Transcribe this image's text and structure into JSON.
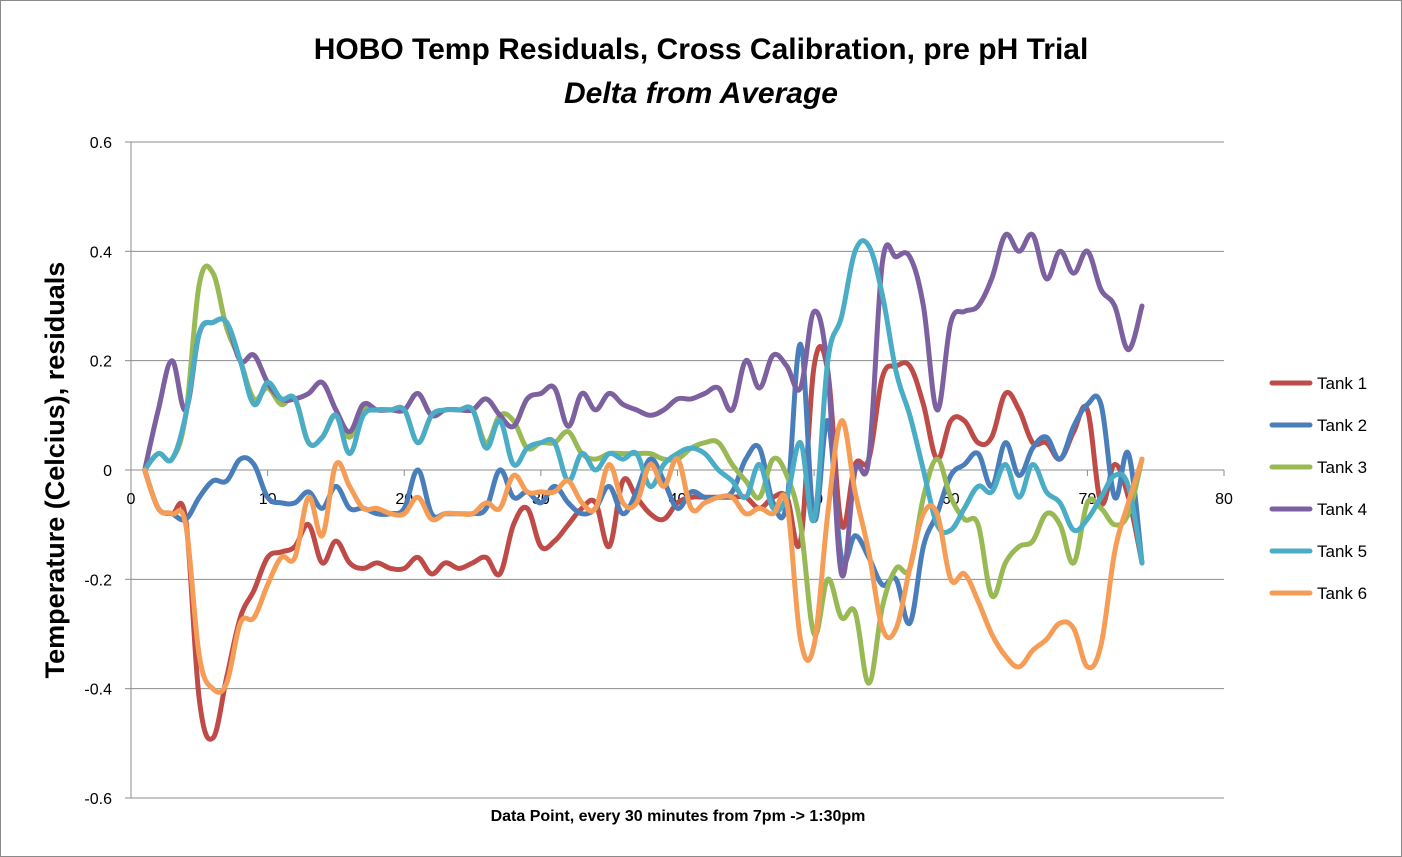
{
  "chart_data": {
    "type": "line",
    "title": "HOBO Temp Residuals, Cross Calibration, pre pH Trial",
    "subtitle": "Delta from Average",
    "xlabel": "Data Point, every 30 minutes from 7pm -> 1:30pm",
    "ylabel": "Temperature (Celcius), residuals",
    "xlim": [
      0,
      80
    ],
    "ylim": [
      -0.6,
      0.6
    ],
    "x_ticks": [
      0,
      10,
      20,
      30,
      40,
      50,
      60,
      70,
      80
    ],
    "y_ticks": [
      -0.6,
      -0.4,
      -0.2,
      0,
      0.2,
      0.4,
      0.6
    ],
    "y_tick_labels": [
      "-0.6",
      "-0.4",
      "-0.2",
      "0",
      "0.2",
      "0.4",
      "0.6"
    ],
    "x_tick_labels": [
      "0",
      "10",
      "20",
      "30",
      "40",
      "50",
      "60",
      "70",
      "80"
    ],
    "grid": "horizontal",
    "legend": "right",
    "x": [
      1,
      2,
      3,
      4,
      5,
      6,
      7,
      8,
      9,
      10,
      11,
      12,
      13,
      14,
      15,
      16,
      17,
      18,
      19,
      20,
      21,
      22,
      23,
      24,
      25,
      26,
      27,
      28,
      29,
      30,
      31,
      32,
      33,
      34,
      35,
      36,
      37,
      38,
      39,
      40,
      41,
      42,
      43,
      44,
      45,
      46,
      47,
      48,
      49,
      50,
      51,
      52,
      53,
      54,
      55,
      56,
      57,
      58,
      59,
      60,
      61,
      62,
      63,
      64,
      65,
      66,
      67,
      68,
      69,
      70,
      71,
      72,
      73,
      74
    ],
    "series": [
      {
        "name": "Tank 1",
        "color": "#BE4B48",
        "values": [
          0,
          -0.07,
          -0.08,
          -0.09,
          -0.42,
          -0.49,
          -0.38,
          -0.27,
          -0.22,
          -0.16,
          -0.15,
          -0.14,
          -0.1,
          -0.17,
          -0.13,
          -0.17,
          -0.18,
          -0.17,
          -0.18,
          -0.18,
          -0.16,
          -0.19,
          -0.17,
          -0.18,
          -0.17,
          -0.16,
          -0.19,
          -0.1,
          -0.07,
          -0.14,
          -0.13,
          -0.1,
          -0.07,
          -0.06,
          -0.14,
          -0.02,
          -0.05,
          -0.08,
          -0.09,
          -0.06,
          -0.05,
          -0.05,
          -0.05,
          -0.05,
          -0.05,
          -0.07,
          -0.05,
          -0.05,
          -0.13,
          0.19,
          0.18,
          -0.1,
          0.01,
          0.02,
          0.17,
          0.19,
          0.19,
          0.12,
          0.02,
          0.09,
          0.09,
          0.05,
          0.06,
          0.14,
          0.11,
          0.05,
          0.05,
          0.02,
          0.07,
          0.11,
          -0.06,
          0.01,
          -0.05,
          -0.17
        ]
      },
      {
        "name": "Tank 2",
        "color": "#4A7EBB",
        "values": [
          0,
          -0.07,
          -0.08,
          -0.09,
          -0.05,
          -0.02,
          -0.02,
          0.02,
          0.01,
          -0.05,
          -0.06,
          -0.06,
          -0.04,
          -0.07,
          -0.03,
          -0.07,
          -0.07,
          -0.08,
          -0.08,
          -0.07,
          0,
          -0.08,
          -0.08,
          -0.08,
          -0.08,
          -0.07,
          0,
          -0.05,
          -0.04,
          -0.06,
          -0.03,
          -0.06,
          -0.08,
          -0.07,
          -0.03,
          -0.08,
          -0.04,
          0.02,
          -0.02,
          -0.07,
          -0.04,
          -0.05,
          -0.05,
          -0.04,
          0.02,
          0.04,
          -0.06,
          -0.06,
          0.23,
          -0.09,
          0.09,
          -0.16,
          -0.12,
          -0.16,
          -0.21,
          -0.2,
          -0.28,
          -0.14,
          -0.08,
          -0.01,
          0.01,
          0.03,
          -0.03,
          0.05,
          -0.01,
          0.04,
          0.06,
          0.02,
          0.08,
          0.12,
          0.12,
          -0.05,
          0.03,
          -0.17
        ]
      },
      {
        "name": "Tank 3",
        "color": "#98B954",
        "values": [
          0,
          0.03,
          0.02,
          0.1,
          0.34,
          0.36,
          0.26,
          0.2,
          0.13,
          0.15,
          0.12,
          0.13,
          0.05,
          0.06,
          0.1,
          0.06,
          0.11,
          0.11,
          0.11,
          0.11,
          0.05,
          0.1,
          0.11,
          0.11,
          0.11,
          0.05,
          0.1,
          0.09,
          0.04,
          0.05,
          0.05,
          0.07,
          0.03,
          0.02,
          0.03,
          0.03,
          0.03,
          0.03,
          0.02,
          0.02,
          0.04,
          0.05,
          0.05,
          0.01,
          -0.02,
          -0.05,
          0.02,
          -0.01,
          -0.1,
          -0.3,
          -0.2,
          -0.27,
          -0.26,
          -0.39,
          -0.25,
          -0.18,
          -0.18,
          -0.05,
          0.02,
          -0.05,
          -0.09,
          -0.1,
          -0.23,
          -0.17,
          -0.14,
          -0.13,
          -0.08,
          -0.1,
          -0.17,
          -0.06,
          -0.07,
          -0.1,
          -0.08,
          0.02
        ]
      },
      {
        "name": "Tank 4",
        "color": "#7D60A0",
        "values": [
          0,
          0.11,
          0.2,
          0.11,
          0.25,
          0.27,
          0.27,
          0.2,
          0.21,
          0.16,
          0.13,
          0.13,
          0.14,
          0.16,
          0.11,
          0.07,
          0.12,
          0.11,
          0.11,
          0.11,
          0.14,
          0.1,
          0.11,
          0.11,
          0.11,
          0.13,
          0.1,
          0.08,
          0.13,
          0.14,
          0.15,
          0.08,
          0.14,
          0.11,
          0.14,
          0.12,
          0.11,
          0.1,
          0.11,
          0.13,
          0.13,
          0.14,
          0.15,
          0.11,
          0.2,
          0.15,
          0.21,
          0.19,
          0.15,
          0.29,
          0.18,
          -0.19,
          0,
          0.02,
          0.38,
          0.39,
          0.39,
          0.3,
          0.11,
          0.27,
          0.29,
          0.3,
          0.35,
          0.43,
          0.4,
          0.43,
          0.35,
          0.4,
          0.36,
          0.4,
          0.33,
          0.3,
          0.22,
          0.3
        ]
      },
      {
        "name": "Tank 5",
        "color": "#4BACC6",
        "values": [
          0,
          0.03,
          0.02,
          0.1,
          0.25,
          0.27,
          0.27,
          0.2,
          0.12,
          0.16,
          0.13,
          0.13,
          0.05,
          0.06,
          0.1,
          0.03,
          0.1,
          0.11,
          0.11,
          0.11,
          0.05,
          0.1,
          0.11,
          0.11,
          0.11,
          0.04,
          0.09,
          0.01,
          0.04,
          0.05,
          0.05,
          -0.02,
          0.03,
          0,
          0.03,
          0.02,
          0.03,
          -0.03,
          0.01,
          0.03,
          0.04,
          0.03,
          0,
          -0.02,
          -0.05,
          0.01,
          -0.07,
          -0.05,
          0.05,
          -0.09,
          0.2,
          0.28,
          0.4,
          0.41,
          0.32,
          0.18,
          0.1,
          0,
          -0.1,
          -0.11,
          -0.07,
          -0.03,
          -0.04,
          0.01,
          -0.05,
          0.01,
          -0.04,
          -0.06,
          -0.11,
          -0.09,
          -0.05,
          -0.01,
          -0.03,
          -0.17
        ]
      },
      {
        "name": "Tank 6",
        "color": "#F59D56",
        "values": [
          0,
          -0.07,
          -0.08,
          -0.1,
          -0.34,
          -0.4,
          -0.39,
          -0.28,
          -0.27,
          -0.21,
          -0.16,
          -0.16,
          -0.05,
          -0.12,
          0.01,
          -0.03,
          -0.07,
          -0.07,
          -0.08,
          -0.08,
          -0.05,
          -0.09,
          -0.08,
          -0.08,
          -0.08,
          -0.06,
          -0.07,
          -0.01,
          -0.04,
          -0.04,
          -0.04,
          -0.02,
          -0.06,
          -0.07,
          0.01,
          -0.06,
          -0.06,
          0.01,
          -0.03,
          0.02,
          -0.07,
          -0.06,
          -0.05,
          -0.05,
          -0.08,
          -0.07,
          -0.08,
          -0.06,
          -0.31,
          -0.32,
          -0.08,
          0.09,
          -0.04,
          -0.15,
          -0.29,
          -0.29,
          -0.18,
          -0.08,
          -0.08,
          -0.2,
          -0.19,
          -0.24,
          -0.3,
          -0.34,
          -0.36,
          -0.33,
          -0.31,
          -0.28,
          -0.29,
          -0.36,
          -0.32,
          -0.15,
          -0.06,
          0.02
        ]
      }
    ]
  }
}
